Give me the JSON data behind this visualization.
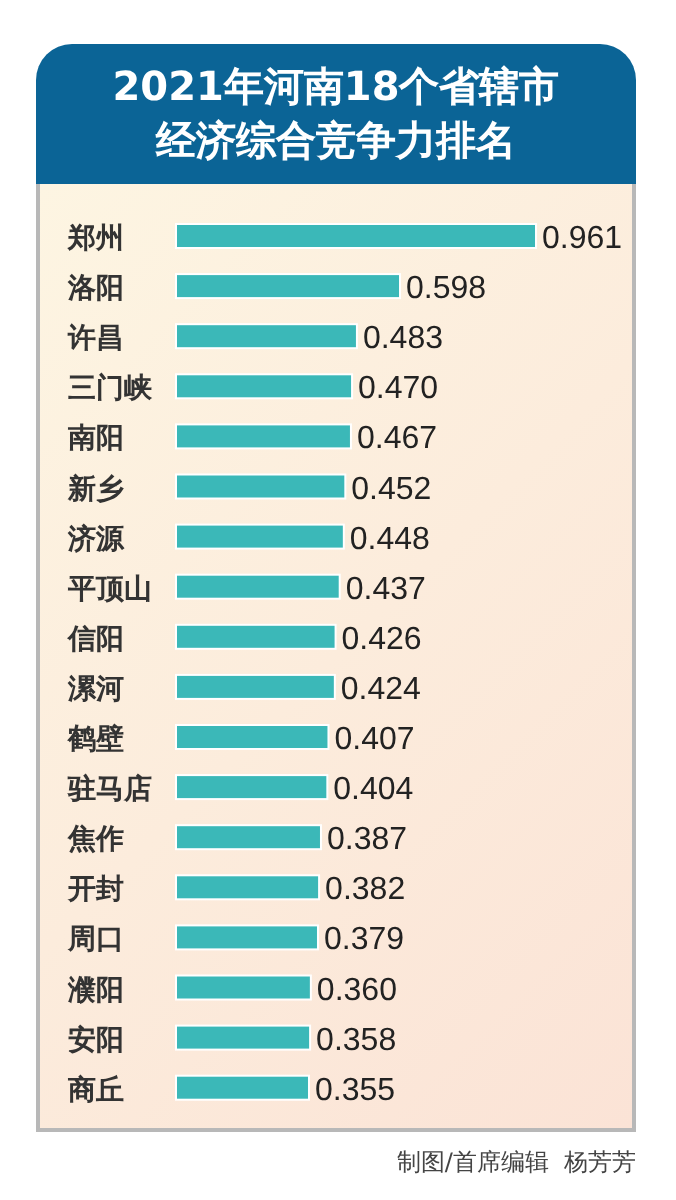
{
  "chart_data": {
    "type": "bar",
    "orientation": "horizontal",
    "value_labels": [
      "0.961",
      "0.598",
      "0.483",
      "0.470",
      "0.467",
      "0.452",
      "0.448",
      "0.437",
      "0.426",
      "0.424",
      "0.407",
      "0.404",
      "0.387",
      "0.382",
      "0.379",
      "0.360",
      "0.358",
      "0.355"
    ],
    "title": "2021年河南18个省辖市经济综合竞争力排名",
    "categories": [
      "郑州",
      "洛阳",
      "许昌",
      "三门峡",
      "南阳",
      "新乡",
      "济源",
      "平顶山",
      "信阳",
      "漯河",
      "鹤壁",
      "驻马店",
      "焦作",
      "开封",
      "周口",
      "濮阳",
      "安阳",
      "商丘"
    ],
    "values": [
      0.961,
      0.598,
      0.483,
      0.47,
      0.467,
      0.452,
      0.448,
      0.437,
      0.426,
      0.424,
      0.407,
      0.404,
      0.387,
      0.382,
      0.379,
      0.36,
      0.358,
      0.355
    ],
    "color": "#3bb8b8",
    "annotations": [
      "制图/首席编辑  杨芳芳"
    ]
  }
}
